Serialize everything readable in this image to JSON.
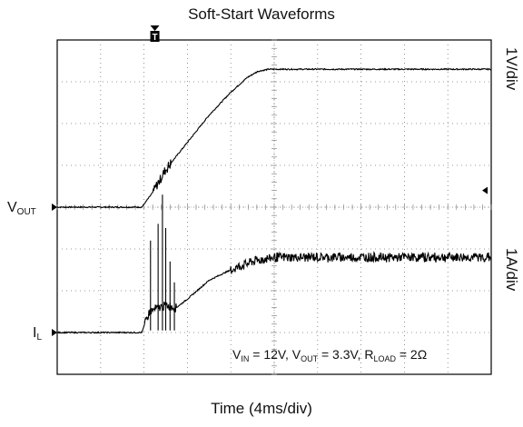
{
  "chart_data": {
    "type": "line",
    "title": "Soft-Start Waveforms",
    "xlabel": "Time (4ms/div)",
    "x_scale": "4ms/div",
    "grid": true,
    "divisions": {
      "x": 10,
      "y": 8
    },
    "channel_scales": [
      "1V/div",
      "1A/div"
    ],
    "trigger_marker": "T",
    "series": [
      {
        "name": "VOUT",
        "label_main": "V",
        "label_sub": "OUT",
        "units": "V",
        "points_ms": [
          [
            0,
            0
          ],
          [
            7.8,
            0
          ],
          [
            8.8,
            0.35
          ],
          [
            10,
            0.9
          ],
          [
            12,
            1.55
          ],
          [
            14,
            2.2
          ],
          [
            16,
            2.75
          ],
          [
            17.5,
            3.1
          ],
          [
            18.5,
            3.25
          ],
          [
            19.5,
            3.3
          ],
          [
            40,
            3.3
          ]
        ],
        "ripple_ms": [
          [
            8.8,
            10.5
          ]
        ]
      },
      {
        "name": "IL",
        "label_main": "I",
        "label_sub": "L",
        "units": "A",
        "points_ms": [
          [
            0,
            0
          ],
          [
            7.8,
            0
          ],
          [
            8.5,
            0.5
          ],
          [
            10,
            0.65
          ],
          [
            11,
            0.6
          ],
          [
            12,
            0.8
          ],
          [
            14,
            1.25
          ],
          [
            16,
            1.5
          ],
          [
            18,
            1.7
          ],
          [
            20,
            1.8
          ],
          [
            40,
            1.8
          ]
        ],
        "ripple_ms": [
          [
            8.0,
            11.0
          ],
          [
            16.0,
            40.0
          ]
        ],
        "spikes_ms": [
          [
            8.6,
            2.2
          ],
          [
            9.3,
            2.6
          ],
          [
            9.7,
            3.3
          ],
          [
            10.0,
            2.5
          ],
          [
            10.4,
            1.7
          ],
          [
            10.8,
            1.2
          ]
        ]
      }
    ],
    "annotation": {
      "vin": "12V",
      "vout": "3.3V",
      "rload": "2Ω"
    }
  }
}
